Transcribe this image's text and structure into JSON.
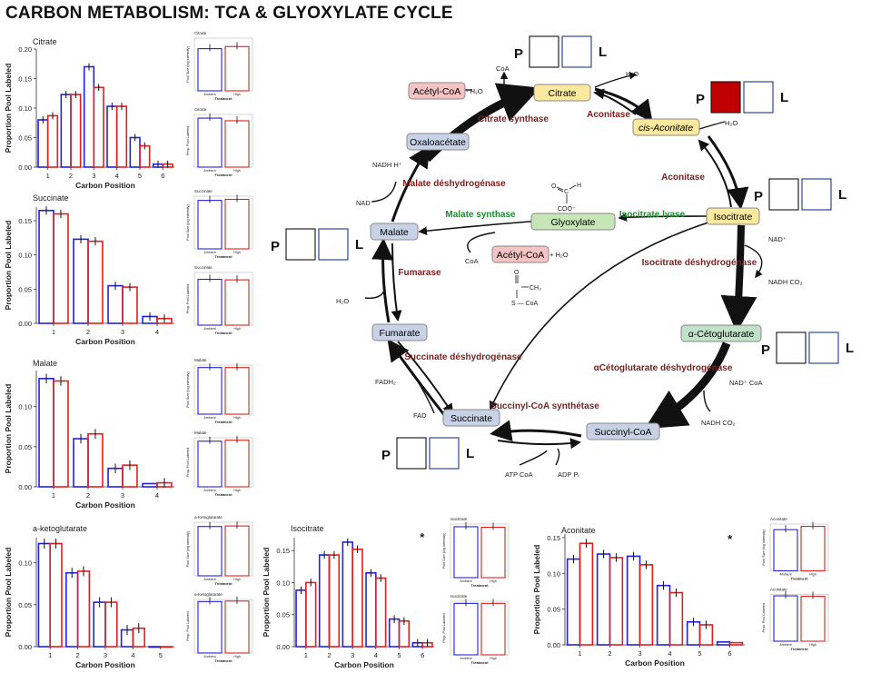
{
  "title": "CARBON METABOLISM: TCA & GLYOXYLATE CYCLE",
  "colors": {
    "ambient": "#2222dd",
    "high": "#e02020",
    "enzyme": "#7a1f1f",
    "glyox_enzyme": "#1e8a2e",
    "filled": "#c00000"
  },
  "chart_data": [
    {
      "type": "bar",
      "title": "Citrate",
      "xlabel": "Carbon Position",
      "ylabel": "Proportion Pool Labeled",
      "categories": [
        "1",
        "2",
        "3",
        "4",
        "5",
        "6"
      ],
      "ylim": [
        0,
        0.2
      ],
      "yticks": [
        "0.00",
        "0.05",
        "0.10",
        "0.15",
        "0.20"
      ],
      "series": [
        {
          "name": "Ambient",
          "values": [
            0.08,
            0.123,
            0.17,
            0.103,
            0.05,
            0.005
          ]
        },
        {
          "name": "High",
          "values": [
            0.087,
            0.123,
            0.135,
            0.103,
            0.036,
            0.005
          ]
        }
      ]
    },
    {
      "type": "bar",
      "title": "Succinate",
      "xlabel": "Carbon Position",
      "ylabel": "Proportion Pool Labeled",
      "categories": [
        "1",
        "2",
        "3",
        "4"
      ],
      "ylim": [
        0,
        0.17
      ],
      "yticks": [
        "0.00",
        "0.05",
        "0.10",
        "0.15"
      ],
      "series": [
        {
          "name": "Ambient",
          "values": [
            0.165,
            0.123,
            0.055,
            0.01
          ]
        },
        {
          "name": "High",
          "values": [
            0.16,
            0.12,
            0.053,
            0.007
          ]
        }
      ]
    },
    {
      "type": "bar",
      "title": "Malate",
      "xlabel": "Carbon Position",
      "ylabel": "Proportion Pool Labeled",
      "categories": [
        "1",
        "2",
        "3",
        "4"
      ],
      "ylim": [
        0,
        0.145
      ],
      "yticks": [
        "0.00",
        "0.05",
        "0.10"
      ],
      "series": [
        {
          "name": "Ambient",
          "values": [
            0.135,
            0.06,
            0.023,
            0.004
          ]
        },
        {
          "name": "High",
          "values": [
            0.132,
            0.066,
            0.027,
            0.005
          ]
        }
      ]
    },
    {
      "type": "bar",
      "title": "a-ketoglutarate",
      "xlabel": "Carbon Position",
      "ylabel": "Proportion Pool Labeled",
      "categories": [
        "1",
        "2",
        "3",
        "4",
        "5"
      ],
      "ylim": [
        0,
        0.13
      ],
      "yticks": [
        "0.00",
        "0.05",
        "0.10"
      ],
      "series": [
        {
          "name": "Ambient",
          "values": [
            0.123,
            0.088,
            0.053,
            0.02,
            0.0
          ]
        },
        {
          "name": "High",
          "values": [
            0.123,
            0.09,
            0.053,
            0.022,
            0.0
          ]
        }
      ]
    },
    {
      "type": "bar",
      "title": "Isocitrate",
      "xlabel": "Carbon Position",
      "ylabel": "Proportion Pool Labeled",
      "categories": [
        "1",
        "2",
        "3",
        "4",
        "5",
        "6"
      ],
      "ylim": [
        0,
        0.17
      ],
      "yticks": [
        "0.00",
        "0.05",
        "0.10",
        "0.15"
      ],
      "annotation": "*",
      "series": [
        {
          "name": "Ambient",
          "values": [
            0.088,
            0.143,
            0.163,
            0.115,
            0.043,
            0.006
          ]
        },
        {
          "name": "High",
          "values": [
            0.1,
            0.143,
            0.152,
            0.107,
            0.04,
            0.006
          ]
        }
      ]
    },
    {
      "type": "bar",
      "title": "Aconitate",
      "xlabel": "Carbon Position",
      "ylabel": "Proportion Pool Labeled",
      "categories": [
        "1",
        "2",
        "3",
        "4",
        "5",
        "6"
      ],
      "ylim": [
        0,
        0.155
      ],
      "yticks": [
        "0.00",
        "0.05",
        "0.10",
        "0.15"
      ],
      "annotation": "*",
      "series": [
        {
          "name": "Ambient",
          "values": [
            0.12,
            0.127,
            0.124,
            0.083,
            0.032,
            0.004
          ]
        },
        {
          "name": "High",
          "values": [
            0.142,
            0.122,
            0.112,
            0.073,
            0.028,
            0.003
          ]
        }
      ]
    }
  ],
  "mini_charts": {
    "xlabel": "Treatment",
    "categories": [
      "Ambient",
      "High"
    ],
    "top_ylabel": "Pool Size (log intensity)",
    "bottom_ylabel": "Prop. Pool Labeled",
    "items": [
      {
        "top_title": "Citrate",
        "bottom_title": "Citrate",
        "top_values": [
          0.8,
          0.84
        ],
        "bottom_values": [
          0.93,
          0.88
        ]
      },
      {
        "top_title": "Succinate",
        "bottom_title": "Succinate",
        "top_values": [
          0.92,
          0.94
        ],
        "bottom_values": [
          0.87,
          0.86
        ]
      },
      {
        "top_title": "Malate",
        "bottom_title": "Malate",
        "top_values": [
          0.95,
          0.95
        ],
        "bottom_values": [
          0.93,
          0.95
        ]
      },
      {
        "top_title": "a-Ketoglutarate",
        "bottom_title": "a-Ketoglutarate",
        "top_values": [
          0.92,
          0.93
        ],
        "bottom_values": [
          0.96,
          0.97
        ]
      },
      {
        "top_title": "Isocitrate",
        "bottom_title": "Isocitrate",
        "top_values": [
          0.95,
          0.94
        ],
        "bottom_values": [
          0.96,
          0.96
        ]
      },
      {
        "top_title": "Aconitate",
        "bottom_title": "Aconitate",
        "top_values": [
          0.88,
          0.95
        ],
        "bottom_values": [
          0.97,
          0.96
        ]
      }
    ]
  },
  "diagram": {
    "metabolites": {
      "citrate": "Citrate",
      "cis_aconitate": "cis-Aconitate",
      "isocitrate": "Isocitrate",
      "akg": "α-Cétoglutarate",
      "succinyl_coa": "Succinyl-CoA",
      "succinate": "Succinate",
      "fumarate": "Fumarate",
      "malate": "Malate",
      "oxaloacetate": "Oxaloacétate",
      "acetyl_coa": "Acétyl-CoA",
      "acetyl_coa2": "Acétyl-CoA",
      "glyoxylate": "Glyoxylate"
    },
    "enzymes": {
      "citrate_synthase": "Citrate synthase",
      "aconitase1": "Aconitase",
      "aconitase2": "Aconitase",
      "icdh": "Isocitrate déshydrogénase",
      "akgdh": "αCétoglutarate déshydrogénase",
      "scs": "Succinyl-CoA synthétase",
      "sdh": "Succinate déshydrogénase",
      "fumarase": "Fumarase",
      "mdh": "Malate déshydrogénase",
      "malate_synthase": "Malate synthase",
      "isocitrate_lyase": "Isocitrate lyase"
    },
    "cofactors": {
      "coa": "CoA",
      "h2o": "H₂O",
      "h2o_acetyl": "- H₂O",
      "h2o_2": "H₂O",
      "nad": "NAD⁺",
      "nadh_co2": "NADH CO₂",
      "nad_coa": "NAD⁺ CoA",
      "nadh_co2b": "NADH CO₂",
      "atp_coa": "ATP CoA",
      "adp_p": "ADP Pᵢ",
      "fadh2": "FADH₂",
      "fad": "FAD",
      "h2o_3": "H₂O",
      "nad_mdh": "NAD⁺",
      "nadh_h": "NADH H⁺",
      "coa2": "CoA",
      "h2o_plus": "+ H₂O",
      "glyox_c": "C",
      "glyox_o": "O",
      "glyox_h": "H",
      "glyox_coo": "COO⁻",
      "struct_ch3": "CH₃",
      "struct_scoa": "S — CoA",
      "struct_o": "O"
    },
    "box_labels": {
      "P": "P",
      "L": "L"
    },
    "box_states": {
      "citrate": [
        false,
        false
      ],
      "cis_aconitate": [
        true,
        false
      ],
      "isocitrate": [
        false,
        false
      ],
      "akg": [
        false,
        false
      ],
      "succinate": [
        false,
        false
      ],
      "malate": [
        false,
        false
      ]
    }
  }
}
